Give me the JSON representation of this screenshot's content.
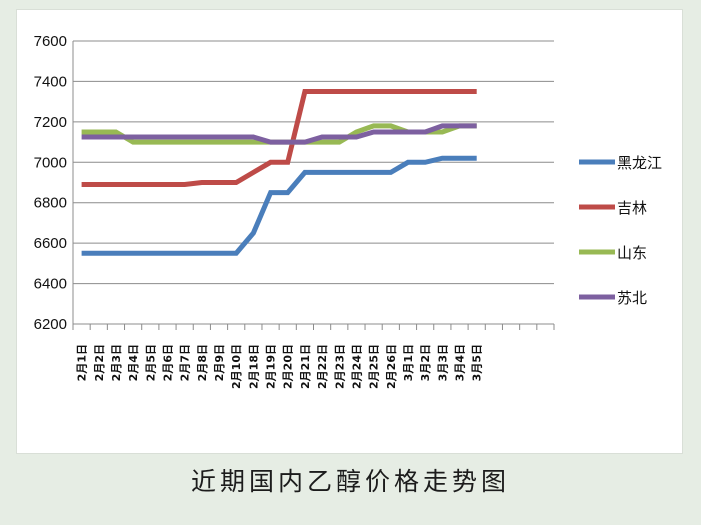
{
  "caption": "近期国内乙醇价格走势图",
  "colors": {
    "page_bg": "#e6ede4",
    "grid": "#8c8c8c",
    "axis": "#8c8c8c"
  },
  "chart_data": {
    "type": "line",
    "title": "",
    "xlabel": "",
    "ylabel": "",
    "ylim": [
      6200,
      7600
    ],
    "yticks": [
      6200,
      6400,
      6600,
      6800,
      7000,
      7200,
      7400,
      7600
    ],
    "grid": true,
    "legend_position": "right",
    "x_slots": 28,
    "categories": [
      "2月1日",
      "2月2日",
      "2月3日",
      "2月4日",
      "2月5日",
      "2月6日",
      "2月7日",
      "2月8日",
      "2月9日",
      "2月10日",
      "2月18日",
      "2月19日",
      "2月20日",
      "2月21日",
      "2月22日",
      "2月23日",
      "2月24日",
      "2月25日",
      "2月26日",
      "3月1日",
      "3月2日",
      "3月3日",
      "3月4日",
      "3月5日"
    ],
    "series": [
      {
        "name": "黑龙江",
        "color": "#4a7ebb",
        "values": [
          6550,
          6550,
          6550,
          6550,
          6550,
          6550,
          6550,
          6550,
          6550,
          6550,
          6650,
          6850,
          6850,
          6950,
          6950,
          6950,
          6950,
          6950,
          6950,
          7000,
          7000,
          7020,
          7020,
          7020
        ]
      },
      {
        "name": "吉林",
        "color": "#be4b48",
        "values": [
          6890,
          6890,
          6890,
          6890,
          6890,
          6890,
          6890,
          6900,
          6900,
          6900,
          6950,
          7000,
          7000,
          7350,
          7350,
          7350,
          7350,
          7350,
          7350,
          7350,
          7350,
          7350,
          7350,
          7350
        ]
      },
      {
        "name": "山东",
        "color": "#98b954",
        "values": [
          7150,
          7150,
          7150,
          7100,
          7100,
          7100,
          7100,
          7100,
          7100,
          7100,
          7100,
          7100,
          7100,
          7100,
          7100,
          7100,
          7150,
          7180,
          7180,
          7150,
          7150,
          7150,
          7180,
          7180
        ]
      },
      {
        "name": "苏北",
        "color": "#7d60a0",
        "values": [
          7125,
          7125,
          7125,
          7125,
          7125,
          7125,
          7125,
          7125,
          7125,
          7125,
          7125,
          7100,
          7100,
          7100,
          7125,
          7125,
          7125,
          7150,
          7150,
          7150,
          7150,
          7180,
          7180,
          7180
        ]
      }
    ]
  }
}
